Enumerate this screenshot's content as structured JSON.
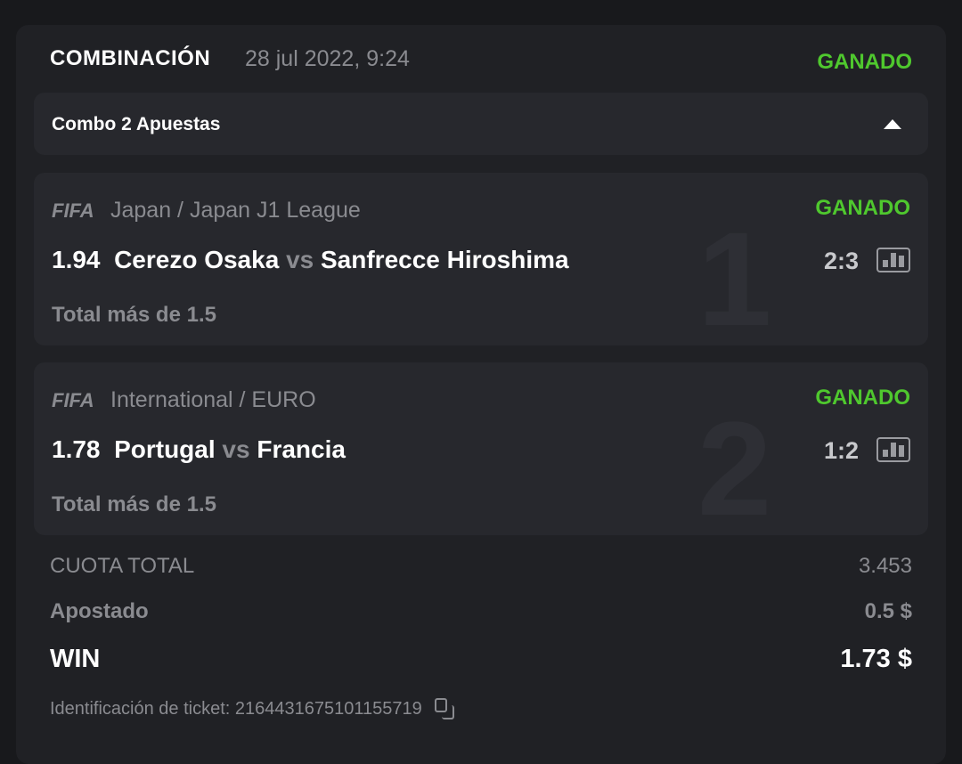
{
  "header": {
    "type": "COMBINACIÓN",
    "date": "28 jul 2022, 9:24",
    "status": "GANADO"
  },
  "combo": {
    "label": "Combo 2 Apuestas"
  },
  "events": [
    {
      "index": "1",
      "league": "Japan / Japan J1 League",
      "status": "GANADO",
      "odds": "1.94",
      "home": "Cerezo Osaka",
      "vs": "vs",
      "away": "Sanfrecce Hiroshima",
      "score": "2:3",
      "market": "Total más de 1.5",
      "sport_logo": "FIFA"
    },
    {
      "index": "2",
      "league": "International / EURO",
      "status": "GANADO",
      "odds": "1.78",
      "home": "Portugal",
      "vs": "vs",
      "away": "Francia",
      "score": "1:2",
      "market": "Total más de 1.5",
      "sport_logo": "FIFA"
    }
  ],
  "summary": {
    "total_odds_label": "CUOTA TOTAL",
    "total_odds": "3.453",
    "stake_label": "Apostado",
    "stake": "0.5 $",
    "win_label": "WIN",
    "win": "1.73 $"
  },
  "ticket": {
    "label": "Identificación de ticket: 2164431675101155719"
  },
  "colors": {
    "win": "#4fc82e",
    "background": "#202125",
    "panel": "#27282d"
  }
}
